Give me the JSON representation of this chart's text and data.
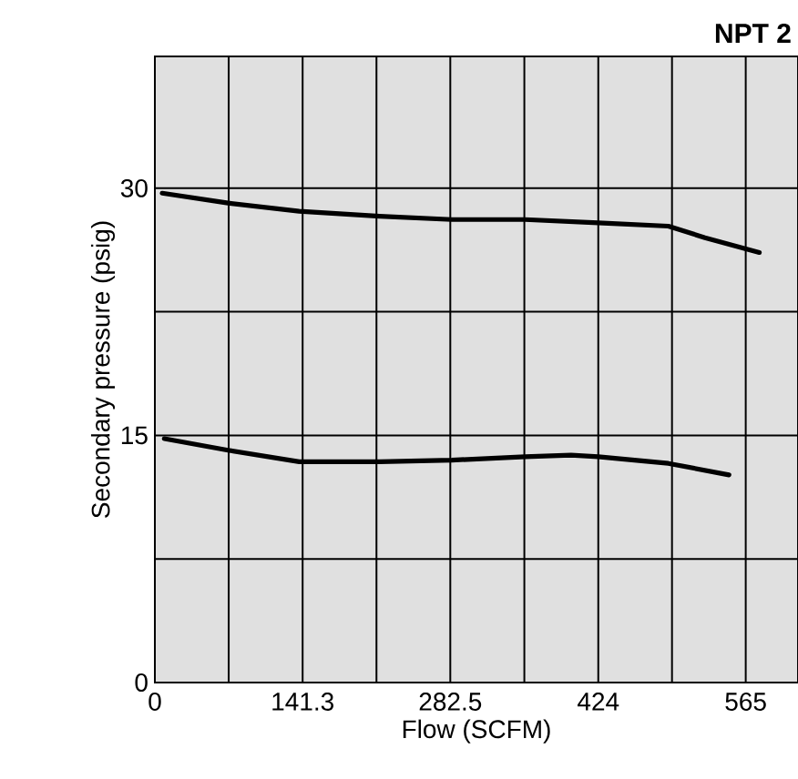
{
  "chart_data": {
    "type": "line",
    "title": "NPT 2",
    "xlabel": "Flow (SCFM)",
    "ylabel": "Secondary pressure (psig)",
    "xlim": [
      0,
      615
    ],
    "ylim": [
      0,
      38
    ],
    "xticks": [
      0,
      {
        "value": 70.6,
        "label": null
      },
      141.3,
      {
        "value": 211.9,
        "label": null
      },
      282.5,
      {
        "value": 353.3,
        "label": null
      },
      424,
      {
        "value": 494.5,
        "label": null
      },
      565
    ],
    "yticks": [
      0,
      {
        "value": 7.5,
        "label": null
      },
      15,
      {
        "value": 22.5,
        "label": null
      },
      30
    ],
    "grid": true,
    "marker": "none",
    "line_style": "solid",
    "series": [
      {
        "color": "#000000",
        "x": [
          7,
          70,
          138,
          215,
          284,
          354,
          424,
          491,
          526,
          578
        ],
        "values": [
          29.7,
          29.1,
          28.6,
          28.3,
          28.1,
          28.1,
          27.9,
          27.7,
          27.0,
          26.1
        ]
      },
      {
        "color": "#000000",
        "x": [
          9,
          70,
          138,
          215,
          284,
          354,
          398,
          424,
          491,
          549
        ],
        "values": [
          14.8,
          14.1,
          13.4,
          13.4,
          13.5,
          13.7,
          13.8,
          13.7,
          13.3,
          12.6
        ]
      }
    ]
  }
}
